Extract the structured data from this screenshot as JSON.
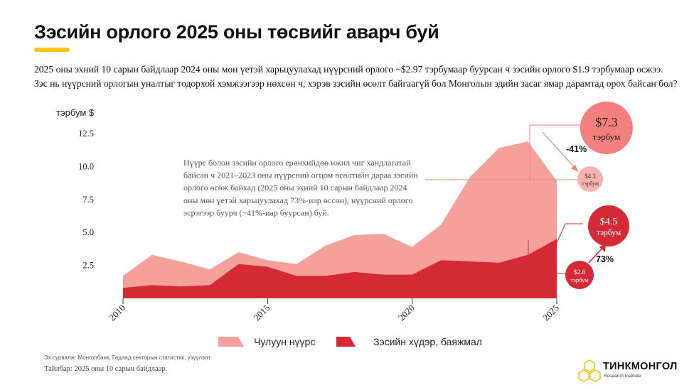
{
  "header": {
    "title": "Зэсийн орлого 2025 оны төсвийг аварч буй",
    "subtitle_line1": "2025 оны эхний 10 сарын байдлаар 2024 оны мөн үетэй харьцуулахад нүүрсний орлого ~$2.97 тэрбумаар буурсан ч зэсийн орлого $1.9 тэрбумаар өсжээ.",
    "subtitle_line2": "Зэс нь нүүрсний орлогын уналтыг тодорхой хэмжээгээр нөхсөн ч, хэрэв зэсийн өсөлт байгаагүй бол Монголын эдийн засаг ямар дарамтад орох байсан бол?"
  },
  "colors": {
    "coal": "#f6a09c",
    "copper": "#d42a35",
    "accent": "#f5c518",
    "bubble_big": "#f47f7c",
    "bubble_small": "#f9b3af"
  },
  "chart_data": {
    "type": "area",
    "ylabel": "тэрбум $",
    "ylim": [
      0,
      13.5
    ],
    "yticks": [
      2.5,
      5.0,
      7.5,
      10.0,
      12.5
    ],
    "ytick_labels": [
      "2.5",
      "5.0",
      "7.5",
      "10.0",
      "12.5"
    ],
    "xlim": [
      2010,
      2025
    ],
    "xticks": [
      2010,
      2015,
      2020,
      2025
    ],
    "xtick_labels": [
      "2010",
      "2015",
      "2020",
      "2025"
    ],
    "x": [
      2010,
      2011,
      2012,
      2013,
      2014,
      2015,
      2016,
      2017,
      2018,
      2019,
      2020,
      2021,
      2022,
      2023,
      2024,
      2025
    ],
    "series": [
      {
        "name": "Чулуун нүүрс",
        "kind": "total",
        "values": [
          1.7,
          3.3,
          2.8,
          2.2,
          3.5,
          2.9,
          2.6,
          4.0,
          4.8,
          4.9,
          3.9,
          5.6,
          9.2,
          11.4,
          11.9,
          8.9
        ]
      },
      {
        "name": "Зэсийн хүдэр, баяжмал",
        "kind": "base",
        "values": [
          0.8,
          1.0,
          0.9,
          1.0,
          2.6,
          2.4,
          1.7,
          1.7,
          2.0,
          1.8,
          1.8,
          2.9,
          2.8,
          2.7,
          3.3,
          4.5
        ]
      }
    ],
    "annotation": "Нүүрс болон зэсийн орлого ерөнхийдөө ижил чиг хандлагатай байсан ч 2021–2023 оны нүүрсний огцом өсөлтийн дараа зэсийн орлого өсөж байхад (2025 оны эхний 10 сарын байдлаар 2024 оны мөн үетэй харьцуулахад 73%-иар өссөн), нүүрсний орлого эсрэгээр буурч (~41%-иар буурсан) буй.",
    "annotation_lines": [
      "Нүүрс болон зэсийн орлого ерөнхийдөө ижил чиг хандлагатай",
      "байсан ч 2021–2023 оны нүүрсний огцом өсөлтийн дараа зэсийн",
      "орлого өсөж байхад (2025 оны эхний 10 сарын байдлаар 2024",
      "оны мөн үетэй харьцуулахад 73%-иар өссөн), нүүрсний орлого",
      "эсрэгээр буурч (~41%-иар буурсан) буй."
    ],
    "callouts": {
      "coal_2024_value": "$7.3",
      "coal_2024_unit": "тэрбум",
      "coal_2025_value": "$4.3",
      "coal_2025_unit": "тэрбум",
      "coal_change": "-41%",
      "copper_2024_value": "$2.6",
      "copper_2024_unit": "тэрбум",
      "copper_2025_value": "$4.5",
      "copper_2025_unit": "тэрбум",
      "copper_change": "73%"
    },
    "legend": {
      "position": "bottom",
      "items": [
        "Чулуун нүүрс",
        "Зэсийн хүдэр, баяжмал"
      ]
    }
  },
  "footer": {
    "source": "Эх сурвалж: Монголбанк, Гадаад секторын статистик, үзүүлэлт",
    "note": "Тайлбар: 2025 оны 10 сарын байдлаар.",
    "logo_name": "ТИНКМОНГОЛ",
    "logo_sub": "Research Institute"
  }
}
